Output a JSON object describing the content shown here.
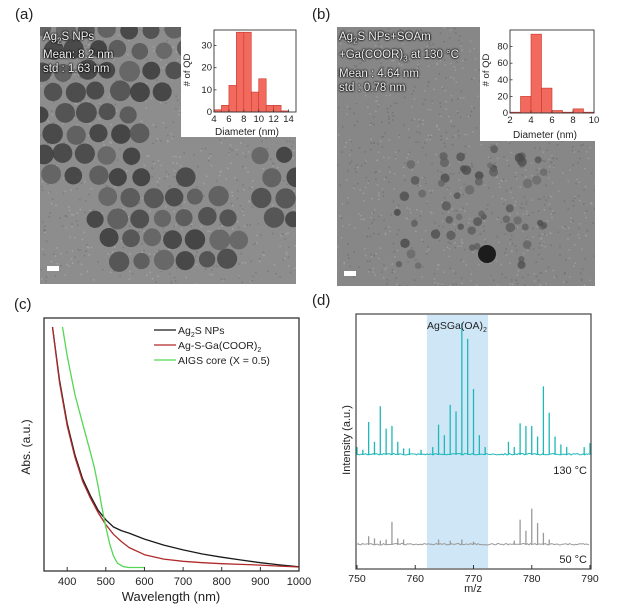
{
  "panels": {
    "a": {
      "label": "(a)",
      "overlay": [
        "Ag",
        "2",
        "S NPs",
        "Mean: 8.2 nm",
        "std : 1.63 nm"
      ]
    },
    "b": {
      "label": "(b)",
      "overlay_line1": [
        "Ag",
        "2",
        "S NPs+SOAm"
      ],
      "overlay_line2": [
        "+Ga(COOR)",
        "3",
        " at 130 °C"
      ],
      "overlay_line3": "Mean : 4.64 nm",
      "overlay_line4": "std : 0.78 nm"
    },
    "c": {
      "label": "(c)"
    },
    "d": {
      "label": "(d)"
    }
  },
  "colors": {
    "hist_bar": "#f26a5e",
    "hist_edge": "#c8352b",
    "ag2s": "#1a1a1a",
    "agsga": "#b02a2a",
    "aigs": "#55d655",
    "ms_130": "#1fb8b8",
    "ms_50": "#9a9a9a",
    "highlight": "#cfe6f7"
  },
  "chart_data": [
    {
      "id": "hist_a",
      "type": "bar",
      "title": "",
      "xlabel": "Diameter (nm)",
      "ylabel": "# of QD",
      "bin_edges": [
        4,
        5,
        6,
        7,
        8,
        9,
        10,
        11,
        12,
        13,
        14
      ],
      "values": [
        1,
        3,
        12,
        36,
        36,
        9,
        15,
        3,
        3,
        0.5
      ],
      "xlim": [
        4,
        15
      ],
      "ylim": [
        0,
        37
      ],
      "xticks": [
        4,
        6,
        8,
        10,
        12,
        14
      ],
      "yticks": [
        0,
        10,
        20,
        30
      ]
    },
    {
      "id": "hist_b",
      "type": "bar",
      "title": "",
      "xlabel": "Diameter (nm)",
      "ylabel": "# of QD",
      "bin_edges": [
        2,
        3,
        4,
        5,
        6,
        7,
        8,
        9,
        10
      ],
      "values": [
        1,
        20,
        95,
        30,
        3,
        1,
        5,
        1
      ],
      "xlim": [
        2,
        10
      ],
      "ylim": [
        0,
        100
      ],
      "xticks": [
        2,
        4,
        6,
        8,
        10
      ],
      "yticks": [
        0,
        20,
        40,
        60,
        80
      ]
    },
    {
      "id": "absorbance",
      "type": "line",
      "title": "",
      "xlabel": "Wavelength (nm)",
      "ylabel": "Abs. (a.u.)",
      "xlim": [
        340,
        1000
      ],
      "ylim": [
        0,
        1
      ],
      "xticks": [
        400,
        500,
        600,
        700,
        800,
        900,
        1000
      ],
      "legend_position": "top-right",
      "series": [
        {
          "name": "Ag2S NPs",
          "legend": [
            "Ag",
            "2",
            "S NPs"
          ],
          "colorKey": "ag2s",
          "x": [
            362,
            380,
            400,
            420,
            440,
            460,
            480,
            500,
            520,
            540,
            560,
            600,
            650,
            700,
            750,
            800,
            850,
            900,
            950,
            1000
          ],
          "y": [
            1.0,
            0.78,
            0.6,
            0.47,
            0.37,
            0.3,
            0.24,
            0.2,
            0.17,
            0.155,
            0.145,
            0.12,
            0.095,
            0.075,
            0.058,
            0.045,
            0.033,
            0.022,
            0.013,
            0.005
          ]
        },
        {
          "name": "Ag-S-Ga(COOR)2",
          "legend": [
            "Ag-S-Ga(COOR)",
            "2",
            ""
          ],
          "colorKey": "agsga",
          "x": [
            362,
            380,
            400,
            420,
            440,
            460,
            480,
            500,
            520,
            540,
            560,
            600,
            650,
            700,
            750,
            800,
            850,
            900,
            950,
            1000
          ],
          "y": [
            1.0,
            0.77,
            0.59,
            0.46,
            0.36,
            0.29,
            0.23,
            0.18,
            0.14,
            0.11,
            0.085,
            0.055,
            0.037,
            0.028,
            0.022,
            0.018,
            0.015,
            0.012,
            0.008,
            0.004
          ]
        },
        {
          "name": "AIGS core (X = 0.5)",
          "legend": [
            "AIGS core (X = 0.5)",
            "",
            ""
          ],
          "colorKey": "aigs",
          "x": [
            388,
            400,
            420,
            440,
            460,
            470,
            480,
            490,
            500,
            510,
            520,
            530,
            545,
            560,
            600
          ],
          "y": [
            1.0,
            0.88,
            0.72,
            0.6,
            0.48,
            0.42,
            0.34,
            0.25,
            0.17,
            0.1,
            0.05,
            0.02,
            0.006,
            0.002,
            0.002
          ]
        }
      ]
    },
    {
      "id": "mass_spec",
      "type": "line",
      "title": "",
      "xlabel": "m/z",
      "ylabel": "Intensity (a.u.)",
      "xlim": [
        750,
        790
      ],
      "xticks": [
        750,
        760,
        770,
        780,
        790
      ],
      "annotation": [
        "AgSGa(OA)",
        "2"
      ],
      "highlight_range": [
        762,
        772.5
      ],
      "series": [
        {
          "name": "130 °C",
          "label": "130 °C",
          "colorKey": "ms_130",
          "peaks_mz": [
            750,
            751,
            752,
            753,
            754,
            755,
            756,
            757,
            758,
            759,
            761,
            763,
            764,
            765,
            766,
            767,
            768,
            769,
            770,
            771,
            772,
            776,
            777,
            778,
            779,
            780,
            781,
            782,
            783,
            784,
            785,
            786,
            789,
            790
          ],
          "peaks_int": [
            0.06,
            0.04,
            0.25,
            0.1,
            0.37,
            0.2,
            0.22,
            0.1,
            0.05,
            0.05,
            0.04,
            0.06,
            0.23,
            0.15,
            0.38,
            0.33,
            1.0,
            0.88,
            0.5,
            0.15,
            0.06,
            0.1,
            0.06,
            0.24,
            0.22,
            0.22,
            0.14,
            0.52,
            0.32,
            0.14,
            0.08,
            0.06,
            0.06,
            0.09
          ]
        },
        {
          "name": "50 °C",
          "label": "50 °C",
          "colorKey": "ms_50",
          "peaks_mz": [
            752,
            753,
            754,
            755,
            756,
            757,
            758,
            764,
            766,
            768,
            770,
            777,
            778,
            779,
            780,
            781,
            782,
            783
          ],
          "peaks_int": [
            0.08,
            0.06,
            0.04,
            0.05,
            0.21,
            0.06,
            0.05,
            0.05,
            0.04,
            0.05,
            0.03,
            0.04,
            0.23,
            0.13,
            0.33,
            0.2,
            0.11,
            0.05
          ]
        }
      ]
    }
  ]
}
